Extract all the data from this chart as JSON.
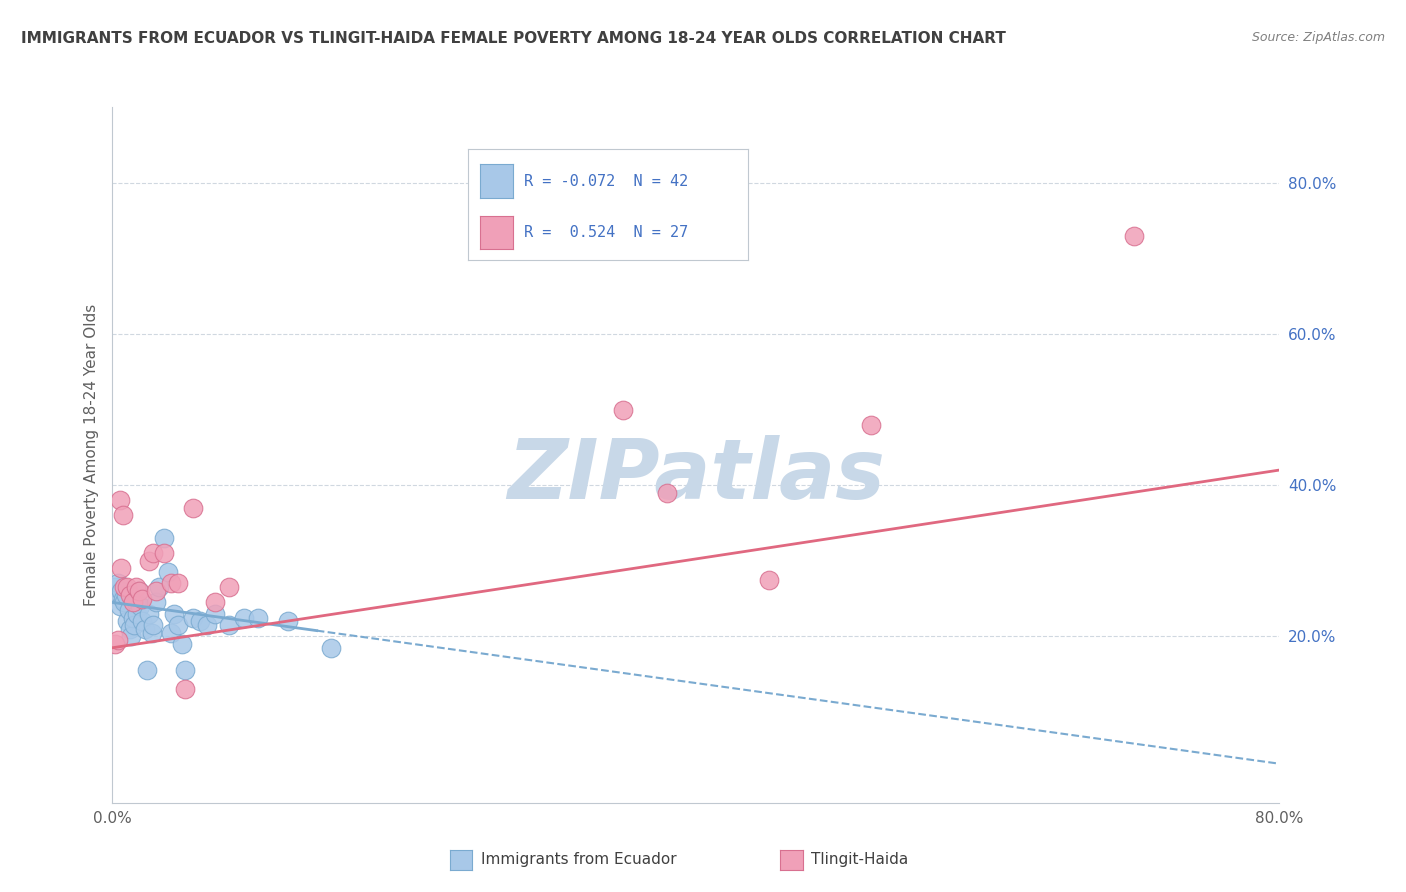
{
  "title": "IMMIGRANTS FROM ECUADOR VS TLINGIT-HAIDA FEMALE POVERTY AMONG 18-24 YEAR OLDS CORRELATION CHART",
  "source": "Source: ZipAtlas.com",
  "ylabel": "Female Poverty Among 18-24 Year Olds",
  "xlim": [
    0.0,
    0.8
  ],
  "ylim": [
    -0.02,
    0.9
  ],
  "xtick_positions": [
    0.0,
    0.1,
    0.2,
    0.3,
    0.4,
    0.5,
    0.6,
    0.7,
    0.8
  ],
  "xticklabels": [
    "0.0%",
    "",
    "",
    "",
    "",
    "",
    "",
    "",
    "80.0%"
  ],
  "ytick_positions": [
    0.2,
    0.4,
    0.6,
    0.8
  ],
  "ytick_labels": [
    "20.0%",
    "40.0%",
    "60.0%",
    "80.0%"
  ],
  "color_blue": "#a8c8e8",
  "color_pink": "#f0a0b8",
  "edge_blue": "#7aaad0",
  "edge_pink": "#d87090",
  "line_color_blue": "#7aaad0",
  "line_color_pink": "#e06880",
  "watermark": "ZIPatlas",
  "watermark_color": "#c8d8e8",
  "scatter_blue_x": [
    0.002,
    0.003,
    0.004,
    0.005,
    0.006,
    0.007,
    0.008,
    0.009,
    0.01,
    0.011,
    0.012,
    0.013,
    0.014,
    0.015,
    0.016,
    0.017,
    0.018,
    0.019,
    0.02,
    0.022,
    0.024,
    0.025,
    0.027,
    0.028,
    0.03,
    0.032,
    0.035,
    0.038,
    0.04,
    0.042,
    0.045,
    0.048,
    0.05,
    0.055,
    0.06,
    0.065,
    0.07,
    0.08,
    0.09,
    0.1,
    0.12,
    0.15
  ],
  "scatter_blue_y": [
    0.265,
    0.255,
    0.27,
    0.24,
    0.26,
    0.25,
    0.245,
    0.255,
    0.22,
    0.235,
    0.21,
    0.2,
    0.225,
    0.215,
    0.245,
    0.23,
    0.26,
    0.24,
    0.22,
    0.21,
    0.155,
    0.23,
    0.205,
    0.215,
    0.245,
    0.265,
    0.33,
    0.285,
    0.205,
    0.23,
    0.215,
    0.19,
    0.155,
    0.225,
    0.22,
    0.215,
    0.23,
    0.215,
    0.225,
    0.225,
    0.22,
    0.185
  ],
  "scatter_pink_x": [
    0.002,
    0.004,
    0.005,
    0.006,
    0.007,
    0.008,
    0.01,
    0.012,
    0.014,
    0.016,
    0.018,
    0.02,
    0.025,
    0.028,
    0.03,
    0.035,
    0.04,
    0.045,
    0.05,
    0.055,
    0.07,
    0.08,
    0.35,
    0.38,
    0.45,
    0.52,
    0.7
  ],
  "scatter_pink_y": [
    0.19,
    0.195,
    0.38,
    0.29,
    0.36,
    0.265,
    0.265,
    0.255,
    0.245,
    0.265,
    0.26,
    0.25,
    0.3,
    0.31,
    0.26,
    0.31,
    0.27,
    0.27,
    0.13,
    0.37,
    0.245,
    0.265,
    0.5,
    0.39,
    0.275,
    0.48,
    0.73
  ],
  "blue_trend_x": [
    0.0,
    0.15
  ],
  "blue_trend_y_start": 0.245,
  "blue_trend_y_end": 0.205,
  "pink_trend_x": [
    0.0,
    0.8
  ],
  "pink_trend_y_start": 0.185,
  "pink_trend_y_end": 0.42,
  "legend_r1": "R = -0.072  N = 42",
  "legend_r2": "R =  0.524  N = 27",
  "legend_text_color": "#4472c4",
  "grid_color": "#d0d8e0",
  "spine_color": "#c0c8d0",
  "title_color": "#404040",
  "source_color": "#808080",
  "ylabel_color": "#606060",
  "xtick_color": "#606060",
  "ytick_color": "#4472c4"
}
